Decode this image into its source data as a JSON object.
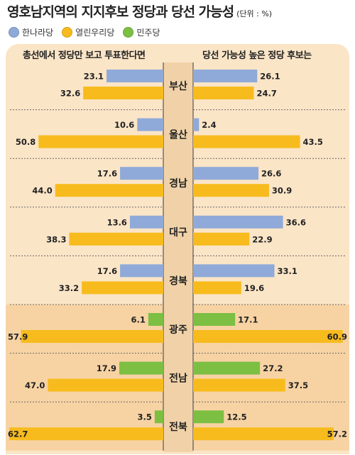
{
  "title": "영호남지역의 지지후보 정당과 당선 가능성",
  "unit": "(단위 : %)",
  "legend": [
    {
      "label": "한나라당",
      "color": "#8faad8"
    },
    {
      "label": "열린우리당",
      "color": "#f7bb1d"
    },
    {
      "label": "민주당",
      "color": "#7cbf42"
    }
  ],
  "left_heading": "총선에서 정당만 보고 투표한다면",
  "right_heading": "당선 가능성 높은 정당 후보는",
  "chart_data": {
    "type": "bar",
    "orientation": "horizontal-butterfly",
    "categories": [
      "부산",
      "울산",
      "경남",
      "대구",
      "경북",
      "광주",
      "전남",
      "전북"
    ],
    "left": {
      "label": "총선에서 정당만 보고 투표한다면",
      "top_bar": [
        {
          "party": "한나라당",
          "value": 23.1
        },
        {
          "party": "한나라당",
          "value": 10.6
        },
        {
          "party": "한나라당",
          "value": 17.6
        },
        {
          "party": "한나라당",
          "value": 13.6
        },
        {
          "party": "한나라당",
          "value": 17.6
        },
        {
          "party": "민주당",
          "value": 6.1
        },
        {
          "party": "민주당",
          "value": 17.9
        },
        {
          "party": "민주당",
          "value": 3.5
        }
      ],
      "bottom_bar": [
        {
          "party": "열린우리당",
          "value": 32.6
        },
        {
          "party": "열린우리당",
          "value": 50.8
        },
        {
          "party": "열린우리당",
          "value": 44.0
        },
        {
          "party": "열린우리당",
          "value": 38.3
        },
        {
          "party": "열린우리당",
          "value": 33.2
        },
        {
          "party": "열린우리당",
          "value": 57.9
        },
        {
          "party": "열린우리당",
          "value": 47.0
        },
        {
          "party": "열린우리당",
          "value": 62.7
        }
      ]
    },
    "right": {
      "label": "당선 가능성 높은 정당 후보는",
      "top_bar": [
        {
          "party": "한나라당",
          "value": 26.1
        },
        {
          "party": "한나라당",
          "value": 2.4
        },
        {
          "party": "한나라당",
          "value": 26.6
        },
        {
          "party": "한나라당",
          "value": 36.6
        },
        {
          "party": "한나라당",
          "value": 33.1
        },
        {
          "party": "민주당",
          "value": 17.1
        },
        {
          "party": "민주당",
          "value": 27.2
        },
        {
          "party": "민주당",
          "value": 12.5
        }
      ],
      "bottom_bar": [
        {
          "party": "열린우리당",
          "value": 24.7
        },
        {
          "party": "열린우리당",
          "value": 43.5
        },
        {
          "party": "열린우리당",
          "value": 30.9
        },
        {
          "party": "열린우리당",
          "value": 22.9
        },
        {
          "party": "열린우리당",
          "value": 19.6
        },
        {
          "party": "열린우리당",
          "value": 60.9
        },
        {
          "party": "열린우리당",
          "value": 37.5
        },
        {
          "party": "열린우리당",
          "value": 57.2
        }
      ]
    },
    "value_labels": [
      [
        "23.1",
        "32.6",
        "26.1",
        "24.7"
      ],
      [
        "10.6",
        "50.8",
        "2.4",
        "43.5"
      ],
      [
        "17.6",
        "44.0",
        "26.6",
        "30.9"
      ],
      [
        "13.6",
        "38.3",
        "36.6",
        "22.9"
      ],
      [
        "17.6",
        "33.2",
        "33.1",
        "19.6"
      ],
      [
        "6.1",
        "57.9",
        "17.1",
        "60.9"
      ],
      [
        "17.9",
        "47.0",
        "27.2",
        "37.5"
      ],
      [
        "3.5",
        "62.7",
        "12.5",
        "57.2"
      ]
    ],
    "colors": {
      "한나라당": "#8faad8",
      "열린우리당": "#f7bb1d",
      "민주당": "#7cbf42",
      "background": "#fbe5c7",
      "center_band": "#f1d2a8",
      "highlight_rows": "#f7d3a3"
    },
    "highlight_categories": [
      "광주",
      "전남",
      "전북"
    ],
    "grid": false,
    "legend_position": "top-left"
  }
}
